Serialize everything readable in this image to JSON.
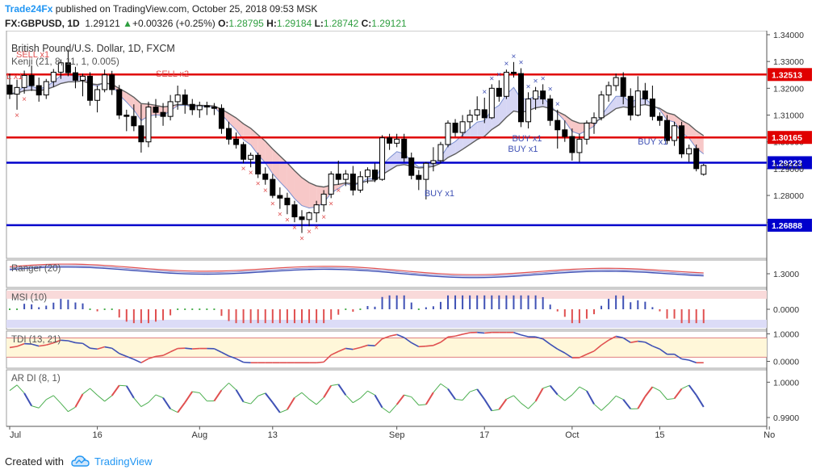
{
  "header": {
    "author": "Trade24Fx",
    "published_text": " published on TradingView.com, October 25, 2018 09:53 MSK",
    "symbol": "FX:GBPUSD, 1D",
    "last": "1.29121",
    "change_arrow": "▲",
    "change": "+0.00326 (+0.25%)",
    "o_label": "O:",
    "o_value": "1.28795",
    "h_label": "H:",
    "h_value": "1.29184",
    "l_label": "L:",
    "l_value": "1.28742",
    "c_label": "C:",
    "c_value": "1.29121"
  },
  "footer": {
    "created_with": "Created with",
    "tradingview": "TradingView"
  },
  "colors": {
    "up_candle": "#ffffff",
    "down_candle": "#000000",
    "red_line": "#e00000",
    "blue_line": "#0000cc",
    "price_tag_red": "#e00000",
    "price_tag_blue": "#0000cc",
    "kenji_green": "#5a7a5a",
    "kenji_fill_pink": "#f4b6b6",
    "kenji_fill_lilac": "#c8c8f0",
    "buy": "#3f51b5",
    "sell": "#e05050"
  },
  "chart_data": [
    {
      "type": "candlestick",
      "title": "British Pound/U.S. Dollar, 1D, FXCM",
      "indicator_label": "Kenji (21, 8, 11, 1, 0.005)",
      "ylim": [
        1.2565,
        1.3415
      ],
      "y_ticks": [
        "1.34000",
        "1.33000",
        "1.32000",
        "1.31000",
        "1.30000",
        "1.29000",
        "1.28000",
        "1.27000"
      ],
      "x_ticks": [
        "Jul",
        "16",
        "Aug",
        "13",
        "Sep",
        "17",
        "Oct",
        "15",
        "No"
      ],
      "horizontal_levels": [
        {
          "value": 1.32513,
          "label": "1.32513",
          "color": "red"
        },
        {
          "value": 1.30165,
          "label": "1.30165",
          "color": "red"
        },
        {
          "value": 1.29223,
          "label": "1.29223",
          "color": "blue"
        },
        {
          "value": 1.26888,
          "label": "1.26888",
          "color": "blue"
        }
      ],
      "last_price": {
        "value": 1.29121,
        "label": "1.29121"
      },
      "candles": [
        [
          1.3212,
          1.3255,
          1.316,
          1.3178
        ],
        [
          1.3178,
          1.3232,
          1.312,
          1.3203
        ],
        [
          1.3203,
          1.3266,
          1.318,
          1.3248
        ],
        [
          1.3248,
          1.3285,
          1.319,
          1.321
        ],
        [
          1.321,
          1.324,
          1.315,
          1.3175
        ],
        [
          1.3175,
          1.3235,
          1.316,
          1.3225
        ],
        [
          1.3225,
          1.3272,
          1.3205,
          1.326
        ],
        [
          1.326,
          1.3308,
          1.3235,
          1.3295
        ],
        [
          1.3295,
          1.3345,
          1.3245,
          1.3258
        ],
        [
          1.3258,
          1.328,
          1.32,
          1.323
        ],
        [
          1.323,
          1.3255,
          1.317,
          1.3245
        ],
        [
          1.3245,
          1.326,
          1.3135,
          1.3155
        ],
        [
          1.3155,
          1.321,
          1.311,
          1.3195
        ],
        [
          1.3195,
          1.327,
          1.3185,
          1.325
        ],
        [
          1.325,
          1.3265,
          1.3175,
          1.3195
        ],
        [
          1.3195,
          1.3212,
          1.3085,
          1.31
        ],
        [
          1.31,
          1.312,
          1.304,
          1.3095
        ],
        [
          1.3095,
          1.314,
          1.304,
          1.306
        ],
        [
          1.306,
          1.314,
          1.296,
          1.3
        ],
        [
          1.3,
          1.315,
          1.298,
          1.313
        ],
        [
          1.313,
          1.316,
          1.309,
          1.311
        ],
        [
          1.311,
          1.3145,
          1.306,
          1.3095
        ],
        [
          1.3095,
          1.3175,
          1.308,
          1.315
        ],
        [
          1.315,
          1.321,
          1.312,
          1.3175
        ],
        [
          1.3175,
          1.3196,
          1.3105,
          1.314
        ],
        [
          1.314,
          1.316,
          1.31,
          1.312
        ],
        [
          1.312,
          1.315,
          1.309,
          1.3135
        ],
        [
          1.3135,
          1.315,
          1.31,
          1.313
        ],
        [
          1.313,
          1.3145,
          1.31,
          1.3125
        ],
        [
          1.3125,
          1.314,
          1.303,
          1.305
        ],
        [
          1.305,
          1.3075,
          1.299,
          1.301
        ],
        [
          1.301,
          1.3035,
          1.2975,
          1.299
        ],
        [
          1.299,
          1.3,
          1.292,
          1.2935
        ],
        [
          1.2935,
          1.296,
          1.2905,
          1.295
        ],
        [
          1.295,
          1.296,
          1.2865,
          1.288
        ],
        [
          1.288,
          1.2905,
          1.284,
          1.286
        ],
        [
          1.286,
          1.288,
          1.279,
          1.28
        ],
        [
          1.28,
          1.283,
          1.275,
          1.279
        ],
        [
          1.279,
          1.281,
          1.273,
          1.2765
        ],
        [
          1.2765,
          1.278,
          1.27,
          1.272
        ],
        [
          1.272,
          1.2745,
          1.266,
          1.271
        ],
        [
          1.271,
          1.274,
          1.2685,
          1.2735
        ],
        [
          1.2735,
          1.278,
          1.27,
          1.2765
        ],
        [
          1.2765,
          1.282,
          1.274,
          1.2805
        ],
        [
          1.2805,
          1.289,
          1.279,
          1.288
        ],
        [
          1.288,
          1.293,
          1.284,
          1.286
        ],
        [
          1.286,
          1.2895,
          1.2835,
          1.288
        ],
        [
          1.288,
          1.291,
          1.28,
          1.282
        ],
        [
          1.282,
          1.289,
          1.281,
          1.287
        ],
        [
          1.287,
          1.2905,
          1.2845,
          1.2895
        ],
        [
          1.2895,
          1.292,
          1.285,
          1.286
        ],
        [
          1.286,
          1.3025,
          1.2855,
          1.3015
        ],
        [
          1.3015,
          1.303,
          1.297,
          1.2995
        ],
        [
          1.2995,
          1.303,
          1.298,
          1.301
        ],
        [
          1.301,
          1.303,
          1.2925,
          1.294
        ],
        [
          1.294,
          1.296,
          1.286,
          1.2875
        ],
        [
          1.2875,
          1.2895,
          1.282,
          1.286
        ],
        [
          1.286,
          1.2925,
          1.2785,
          1.292
        ],
        [
          1.292,
          1.298,
          1.289,
          1.293
        ],
        [
          1.293,
          1.3,
          1.292,
          1.299
        ],
        [
          1.299,
          1.308,
          1.298,
          1.307
        ],
        [
          1.307,
          1.3085,
          1.302,
          1.3035
        ],
        [
          1.3035,
          1.31,
          1.302,
          1.3075
        ],
        [
          1.3075,
          1.312,
          1.305,
          1.31
        ],
        [
          1.31,
          1.317,
          1.308,
          1.312
        ],
        [
          1.312,
          1.3165,
          1.307,
          1.309
        ],
        [
          1.309,
          1.3215,
          1.3085,
          1.32
        ],
        [
          1.32,
          1.323,
          1.315,
          1.317
        ],
        [
          1.317,
          1.327,
          1.316,
          1.326
        ],
        [
          1.326,
          1.3298,
          1.324,
          1.3255
        ],
        [
          1.3255,
          1.3275,
          1.3055,
          1.3075
        ],
        [
          1.3075,
          1.3185,
          1.305,
          1.316
        ],
        [
          1.316,
          1.3205,
          1.312,
          1.319
        ],
        [
          1.319,
          1.3215,
          1.314,
          1.316
        ],
        [
          1.316,
          1.3175,
          1.306,
          1.308
        ],
        [
          1.308,
          1.312,
          1.2975,
          1.3045
        ],
        [
          1.3045,
          1.308,
          1.3,
          1.302
        ],
        [
          1.302,
          1.305,
          1.293,
          1.296
        ],
        [
          1.296,
          1.303,
          1.2925,
          1.301
        ],
        [
          1.301,
          1.308,
          1.299,
          1.307
        ],
        [
          1.307,
          1.311,
          1.303,
          1.309
        ],
        [
          1.309,
          1.319,
          1.308,
          1.3175
        ],
        [
          1.3175,
          1.3225,
          1.315,
          1.321
        ],
        [
          1.321,
          1.3255,
          1.319,
          1.324
        ],
        [
          1.324,
          1.326,
          1.314,
          1.317
        ],
        [
          1.317,
          1.32,
          1.308,
          1.31
        ],
        [
          1.31,
          1.3245,
          1.3095,
          1.319
        ],
        [
          1.319,
          1.322,
          1.314,
          1.316
        ],
        [
          1.316,
          1.321,
          1.308,
          1.3095
        ],
        [
          1.3095,
          1.311,
          1.306,
          1.308
        ],
        [
          1.308,
          1.31,
          1.299,
          1.3005
        ],
        [
          1.3005,
          1.3075,
          1.2985,
          1.306
        ],
        [
          1.306,
          1.3075,
          1.294,
          1.2955
        ],
        [
          1.2955,
          1.299,
          1.2925,
          1.2975
        ],
        [
          1.2975,
          1.299,
          1.289,
          1.29
        ],
        [
          1.2879,
          1.2918,
          1.2874,
          1.2912
        ]
      ]
    },
    {
      "type": "line",
      "title": "Ranger (20)",
      "ylim": [
        1.2925,
        1.3075
      ],
      "y_ticks": [
        "1.3000"
      ]
    },
    {
      "type": "bar",
      "title": "MSI (10)",
      "ylim": [
        -0.0032,
        0.0032
      ],
      "y_ticks": [
        "0.0000"
      ]
    },
    {
      "type": "line",
      "title": "TDI (13, 21)",
      "ylim": [
        -0.25,
        1.1
      ],
      "y_ticks": [
        "1.0000",
        "0.0000"
      ]
    },
    {
      "type": "line",
      "title": "AR DI (8, 1)",
      "ylim": [
        0.9875,
        1.0035
      ],
      "y_ticks": [
        "1.0000",
        "0.9900"
      ]
    }
  ],
  "signals": {
    "buy_label": "BUY x1",
    "sell_x1": "SELL x1",
    "sell_x2": "SELL x2",
    "small_x1": "L x1"
  }
}
